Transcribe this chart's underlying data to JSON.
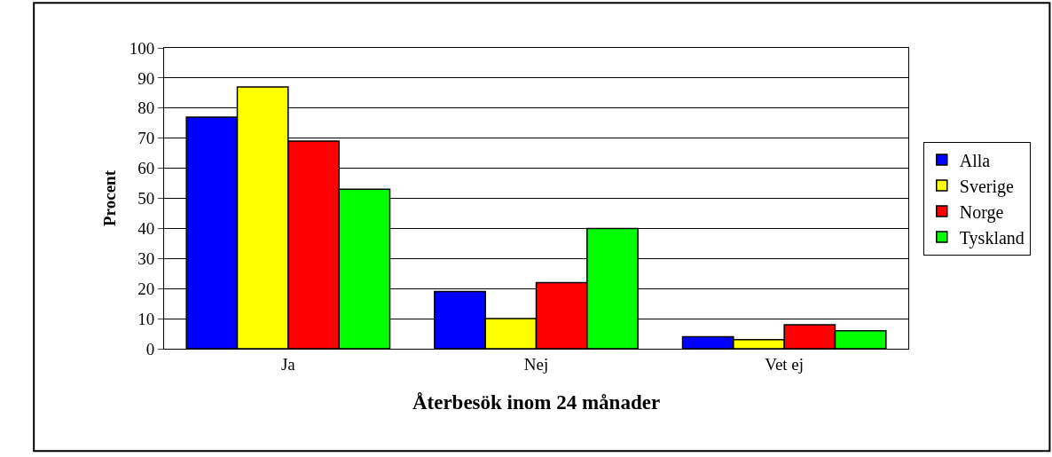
{
  "chart_data": {
    "type": "bar",
    "xlabel": "Återbesök inom 24 månader",
    "ylabel": "Procent",
    "categories": [
      "Ja",
      "Nej",
      "Vet ej"
    ],
    "series": [
      {
        "name": "Alla",
        "color": "#0000ff",
        "values": [
          77,
          19,
          4
        ]
      },
      {
        "name": "Sverige",
        "color": "#ffff00",
        "values": [
          87,
          10,
          3
        ]
      },
      {
        "name": "Norge",
        "color": "#ff0000",
        "values": [
          69,
          22,
          8
        ]
      },
      {
        "name": "Tyskland",
        "color": "#00ff00",
        "values": [
          53,
          40,
          6
        ]
      }
    ],
    "ylim": [
      0,
      100
    ],
    "yticks": [
      0,
      10,
      20,
      30,
      40,
      50,
      60,
      70,
      80,
      90,
      100
    ],
    "grid": "y",
    "legend": "right"
  }
}
